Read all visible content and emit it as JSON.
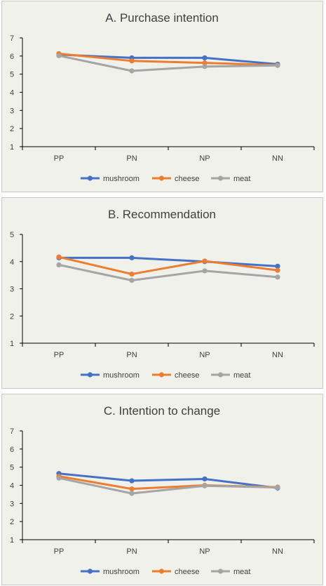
{
  "colors": {
    "mushroom": "#4472c4",
    "cheese": "#ed7d31",
    "meat": "#a5a5a5",
    "axis": "#000000",
    "background": "#f1f1ec"
  },
  "chart_data": [
    {
      "type": "line",
      "title": "A. Purchase intention",
      "categories": [
        "PP",
        "PN",
        "NP",
        "NN"
      ],
      "ylim": [
        1,
        7
      ],
      "yticks": [
        "1",
        "2",
        "3",
        "4",
        "5",
        "6",
        "7"
      ],
      "grid": false,
      "legend": "bottom",
      "series": [
        {
          "name": "mushroom",
          "values": [
            6.08,
            5.9,
            5.9,
            5.55
          ]
        },
        {
          "name": "cheese",
          "values": [
            6.13,
            5.73,
            5.62,
            5.5
          ]
        },
        {
          "name": "meat",
          "values": [
            6.02,
            5.18,
            5.42,
            5.48
          ]
        }
      ]
    },
    {
      "type": "line",
      "title": "B. Recommendation",
      "categories": [
        "PP",
        "PN",
        "NP",
        "NN"
      ],
      "ylim": [
        1,
        5
      ],
      "yticks": [
        "1",
        "2",
        "3",
        "4",
        "5"
      ],
      "grid": false,
      "legend": "bottom",
      "series": [
        {
          "name": "mushroom",
          "values": [
            4.14,
            4.14,
            4.0,
            3.83
          ]
        },
        {
          "name": "cheese",
          "values": [
            4.17,
            3.54,
            4.02,
            3.68
          ]
        },
        {
          "name": "meat",
          "values": [
            3.88,
            3.31,
            3.66,
            3.43
          ]
        }
      ]
    },
    {
      "type": "line",
      "title": "C. Intention to change",
      "categories": [
        "PP",
        "PN",
        "NP",
        "NN"
      ],
      "ylim": [
        1,
        7
      ],
      "yticks": [
        "1",
        "2",
        "3",
        "4",
        "5",
        "6",
        "7"
      ],
      "grid": false,
      "legend": "bottom",
      "series": [
        {
          "name": "mushroom",
          "values": [
            4.65,
            4.25,
            4.35,
            3.85
          ]
        },
        {
          "name": "cheese",
          "values": [
            4.5,
            3.8,
            4.0,
            3.9
          ]
        },
        {
          "name": "meat",
          "values": [
            4.4,
            3.55,
            3.97,
            3.88
          ]
        }
      ]
    }
  ]
}
